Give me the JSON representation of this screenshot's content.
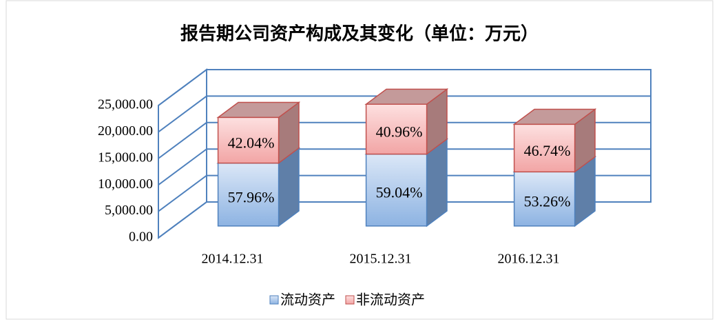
{
  "chart_data": {
    "type": "bar3d_stacked",
    "title": "报告期公司资产构成及其变化（单位：万元）",
    "categories": [
      "2014.12.31",
      "2015.12.31",
      "2016.12.31"
    ],
    "series": [
      {
        "name": "流动资产",
        "color": "#8db3e2",
        "values": [
          11882,
          13580,
          10226
        ],
        "share_labels": [
          "57.96%",
          "59.04%",
          "53.26%"
        ]
      },
      {
        "name": "非流动资产",
        "color": "#f2a5a5",
        "values": [
          8618,
          9420,
          8974
        ],
        "share_labels": [
          "42.04%",
          "40.96%",
          "46.74%"
        ]
      }
    ],
    "ylim": [
      0,
      25000
    ],
    "yticks": [
      {
        "value": 0,
        "label": "0.00"
      },
      {
        "value": 5000,
        "label": "5,000.00"
      },
      {
        "value": 10000,
        "label": "10,000.00"
      },
      {
        "value": 15000,
        "label": "15,000.00"
      },
      {
        "value": 20000,
        "label": "20,000.00"
      },
      {
        "value": 25000,
        "label": "25,000.00"
      }
    ],
    "grid": true,
    "legend": "bottom"
  }
}
